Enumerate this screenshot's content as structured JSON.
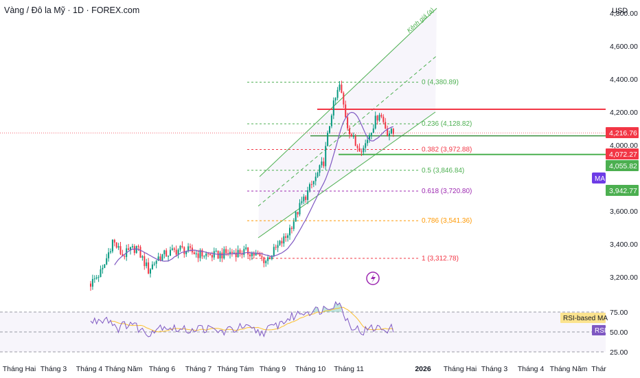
{
  "header": {
    "title": "Vàng / Đô la Mỹ · 1D · FOREX.com",
    "currency": "USD"
  },
  "colors": {
    "up": "#089981",
    "down": "#f23645",
    "ma": "#7e57c2",
    "channel": "#4caf50",
    "rsi": "#7e57c2",
    "rsi_ma": "#fbc02d"
  },
  "chart_data": {
    "type": "candlestick",
    "title": "Vàng / Đô la Mỹ · 1D · FOREX.com",
    "price_axis": {
      "unit": "USD",
      "ticks": [
        3200,
        3400,
        3600,
        4000,
        4200,
        4400,
        4600,
        4800
      ],
      "tick_labels": [
        "3,200.00",
        "3,400.00",
        "3,600.00",
        "4,000.00",
        "4,200.00",
        "4,400.00",
        "4,600.00",
        "4,800.00"
      ],
      "range": [
        3150,
        4990
      ]
    },
    "time_axis": {
      "labels": [
        "Tháng Hai",
        "Tháng 3",
        "Tháng 4",
        "Tháng Năm",
        "Tháng 6",
        "Tháng 7",
        "Tháng Tám",
        "Tháng 9",
        "Tháng 10",
        "Tháng 11",
        "2026",
        "Tháng Hai",
        "Tháng 3",
        "Tháng 4",
        "Tháng Năm",
        "Thár"
      ]
    },
    "ohlc_anchors": [
      {
        "day": 0,
        "price": 3160
      },
      {
        "day": 6,
        "price": 3240
      },
      {
        "day": 11,
        "price": 3420
      },
      {
        "day": 16,
        "price": 3330
      },
      {
        "day": 23,
        "price": 3380
      },
      {
        "day": 29,
        "price": 3240
      },
      {
        "day": 34,
        "price": 3320
      },
      {
        "day": 45,
        "price": 3370
      },
      {
        "day": 54,
        "price": 3340
      },
      {
        "day": 62,
        "price": 3330
      },
      {
        "day": 72,
        "price": 3350
      },
      {
        "day": 80,
        "price": 3350
      },
      {
        "day": 88,
        "price": 3300
      },
      {
        "day": 98,
        "price": 3440
      },
      {
        "day": 106,
        "price": 3650
      },
      {
        "day": 113,
        "price": 3800
      },
      {
        "day": 117,
        "price": 3900
      },
      {
        "day": 121,
        "price": 4200
      },
      {
        "day": 125,
        "price": 4360
      },
      {
        "day": 129,
        "price": 4120
      },
      {
        "day": 133,
        "price": 4000
      },
      {
        "day": 137,
        "price": 3980
      },
      {
        "day": 141,
        "price": 4100
      },
      {
        "day": 145,
        "price": 4200
      },
      {
        "day": 149,
        "price": 4080
      },
      {
        "day": 152,
        "price": 4070
      }
    ],
    "fibonacci": [
      {
        "level": "0",
        "price": 4380.89,
        "label": "0 (4,380.89)",
        "color": "#4caf50"
      },
      {
        "level": "0.236",
        "price": 4128.82,
        "label": "0.236 (4,128.82)",
        "color": "#4caf50"
      },
      {
        "level": "0.382",
        "price": 3972.88,
        "label": "0.382 (3,972.88)",
        "color": "#f23645"
      },
      {
        "level": "0.5",
        "price": 3846.84,
        "label": "0.5 (3,846.84)",
        "color": "#4caf50"
      },
      {
        "level": "0.618",
        "price": 3720.8,
        "label": "0.618 (3,720.80)",
        "color": "#9c27b0"
      },
      {
        "level": "0.786",
        "price": 3541.36,
        "label": "0.786 (3,541.36)",
        "color": "#ff9800"
      },
      {
        "level": "1",
        "price": 3312.78,
        "label": "1 (3,312.78)",
        "color": "#f23645"
      }
    ],
    "horizontal_lines": [
      {
        "name": "resistance",
        "price": 4216.76,
        "color": "#f23645"
      },
      {
        "name": "support",
        "price": 3942.77,
        "color": "#4caf50"
      },
      {
        "name": "mid",
        "price": 4055.82,
        "color": "#388e3c"
      }
    ],
    "price_labels": [
      {
        "text": "4,216.76",
        "price": 4216.76,
        "color": "#f23645"
      },
      {
        "text": "4,072.27",
        "price": 4072.27,
        "color": "#f23645"
      },
      {
        "text": "4,055.82",
        "price": 4055.82,
        "color": "#4caf50"
      },
      {
        "text": "3,942.77",
        "price": 3942.77,
        "color": "#4caf50"
      }
    ],
    "ma_badge": "MA",
    "channel_label": "Kênh giá (a)",
    "rsi": {
      "ticks": [
        75,
        50,
        25
      ],
      "tick_labels": [
        "75.00",
        "50.00",
        "25.00"
      ],
      "range": [
        20,
        100
      ],
      "anchors": [
        {
          "day": 0,
          "value": 62
        },
        {
          "day": 8,
          "value": 68
        },
        {
          "day": 14,
          "value": 55
        },
        {
          "day": 20,
          "value": 62
        },
        {
          "day": 28,
          "value": 48
        },
        {
          "day": 36,
          "value": 58
        },
        {
          "day": 46,
          "value": 52
        },
        {
          "day": 56,
          "value": 55
        },
        {
          "day": 66,
          "value": 50
        },
        {
          "day": 76,
          "value": 56
        },
        {
          "day": 86,
          "value": 49
        },
        {
          "day": 96,
          "value": 62
        },
        {
          "day": 106,
          "value": 75
        },
        {
          "day": 116,
          "value": 78
        },
        {
          "day": 124,
          "value": 88
        },
        {
          "day": 130,
          "value": 60
        },
        {
          "day": 136,
          "value": 50
        },
        {
          "day": 142,
          "value": 55
        },
        {
          "day": 148,
          "value": 54
        },
        {
          "day": 152,
          "value": 54
        }
      ],
      "badges": [
        {
          "text": "RSI-based MA",
          "value": 68
        },
        {
          "text": "RSI",
          "value": 54
        }
      ]
    }
  }
}
